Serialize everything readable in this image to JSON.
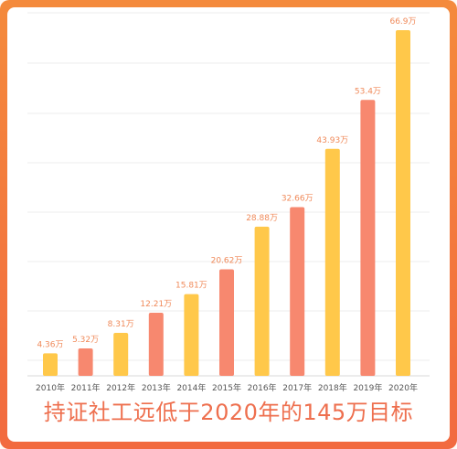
{
  "chart_data": {
    "type": "bar",
    "categories": [
      "2010年",
      "2011年",
      "2012年",
      "2013年",
      "2014年",
      "2015年",
      "2016年",
      "2017年",
      "2018年",
      "2019年",
      "2020年"
    ],
    "values": [
      4.36,
      5.32,
      8.31,
      12.21,
      15.81,
      20.62,
      28.88,
      32.66,
      43.93,
      53.4,
      66.9
    ],
    "value_labels": [
      "4.36万",
      "5.32万",
      "8.31万",
      "12.21万",
      "15.81万",
      "20.62万",
      "28.88万",
      "32.66万",
      "43.93万",
      "53.4万",
      "66.9万"
    ],
    "title": "",
    "xlabel": "",
    "ylabel": "",
    "ylim": [
      0,
      70
    ],
    "grid": true,
    "legend": "none",
    "colors": [
      "#ffc84a",
      "#f7886f"
    ]
  },
  "caption": "持证社工远低于2020年的145万目标"
}
